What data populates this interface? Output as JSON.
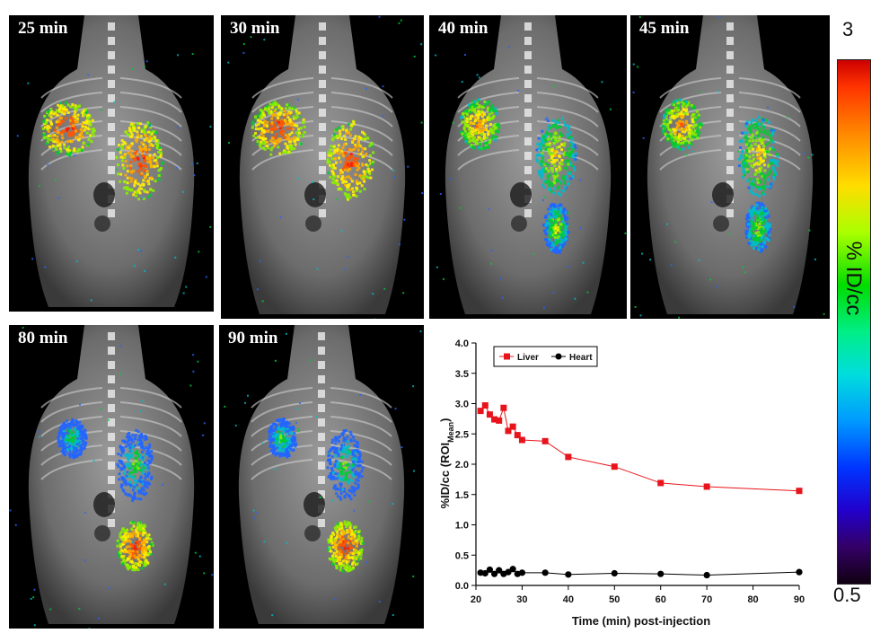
{
  "panels": [
    {
      "label": "25 min"
    },
    {
      "label": "30 min"
    },
    {
      "label": "40 min"
    },
    {
      "label": "45 min"
    },
    {
      "label": "80 min"
    },
    {
      "label": "90 min"
    }
  ],
  "colorbar": {
    "max": "3",
    "min": "0.5",
    "label": "% ID/cc"
  },
  "chart_data": {
    "type": "line",
    "xlabel": "Time (min) post-injection",
    "ylabel_main": "%ID/cc (ROI",
    "ylabel_sub": "Mean",
    "ylabel_close": ")",
    "xlim": [
      20,
      90
    ],
    "ylim": [
      0,
      4
    ],
    "xticks": [
      "20",
      "30",
      "40",
      "50",
      "60",
      "70",
      "80",
      "90"
    ],
    "yticks": [
      "0.0",
      "0.5",
      "1.0",
      "1.5",
      "2.0",
      "2.5",
      "3.0",
      "3.5",
      "4.0"
    ],
    "legend_position": "top-left",
    "grid": false,
    "series": [
      {
        "name": "Liver",
        "color": "#e8141c",
        "marker": "square",
        "x": [
          21,
          22,
          23,
          24,
          25,
          26,
          27,
          28,
          29,
          30,
          35,
          40,
          50,
          60,
          70,
          90
        ],
        "y": [
          2.88,
          2.97,
          2.82,
          2.74,
          2.72,
          2.93,
          2.55,
          2.62,
          2.48,
          2.4,
          2.38,
          2.12,
          1.96,
          1.69,
          1.63,
          1.56
        ]
      },
      {
        "name": "Heart",
        "color": "#000000",
        "marker": "circle",
        "x": [
          21,
          22,
          23,
          24,
          25,
          26,
          27,
          28,
          29,
          30,
          35,
          40,
          50,
          60,
          70,
          90
        ],
        "y": [
          0.21,
          0.2,
          0.26,
          0.19,
          0.25,
          0.19,
          0.22,
          0.27,
          0.19,
          0.21,
          0.21,
          0.18,
          0.2,
          0.19,
          0.17,
          0.22
        ]
      }
    ]
  }
}
